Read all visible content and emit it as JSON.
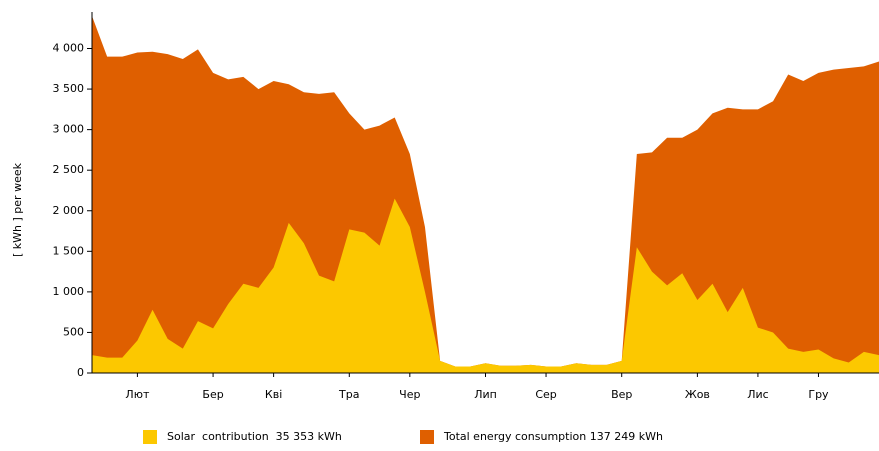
{
  "chart_data": {
    "type": "area",
    "ylabel": "[ kWh ] per week",
    "categories": [
      null,
      null,
      null,
      "Лют",
      null,
      null,
      null,
      null,
      "Бер",
      null,
      null,
      null,
      "Кві",
      null,
      null,
      null,
      null,
      "Тра",
      null,
      null,
      null,
      "Чер",
      null,
      null,
      null,
      null,
      "Лип",
      null,
      null,
      null,
      "Сер",
      null,
      null,
      null,
      null,
      "Вер",
      null,
      null,
      null,
      null,
      "Жов",
      null,
      null,
      null,
      "Лис",
      null,
      null,
      null,
      "Гру",
      null,
      null,
      null,
      null
    ],
    "series": [
      {
        "name": "Total energy consumption 137 249 kWh",
        "color": "#df5f00",
        "values": [
          4400,
          3900,
          3900,
          3950,
          3960,
          3930,
          3870,
          3990,
          3700,
          3620,
          3650,
          3500,
          3600,
          3560,
          3460,
          3440,
          3460,
          3200,
          3000,
          3050,
          3150,
          2700,
          1800,
          150,
          80,
          80,
          120,
          90,
          90,
          100,
          80,
          80,
          120,
          100,
          100,
          150,
          2700,
          2720,
          2900,
          2900,
          3000,
          3200,
          3270,
          3250,
          3250,
          3350,
          3680,
          3600,
          3700,
          3740,
          3760,
          3780,
          3840
        ]
      },
      {
        "name": "Solar  contribution  35 353 kWh",
        "color": "#fcc800",
        "values": [
          220,
          190,
          190,
          400,
          780,
          420,
          300,
          640,
          550,
          850,
          1100,
          1050,
          1300,
          1850,
          1600,
          1200,
          1130,
          1770,
          1730,
          1570,
          2150,
          1800,
          1000,
          150,
          80,
          80,
          120,
          90,
          90,
          100,
          80,
          80,
          120,
          100,
          100,
          150,
          1550,
          1250,
          1080,
          1230,
          900,
          1100,
          750,
          1050,
          560,
          500,
          300,
          260,
          290,
          180,
          130,
          260,
          220
        ]
      }
    ],
    "ylim": [
      0,
      4450
    ],
    "yticks": [
      0,
      500,
      {
        "value": 1000,
        "label": "1 000"
      },
      {
        "value": 1500,
        "label": "1 500"
      },
      {
        "value": 2000,
        "label": "2 000"
      },
      {
        "value": 2500,
        "label": "2 500"
      },
      {
        "value": 3000,
        "label": "3 000"
      },
      {
        "value": 3500,
        "label": "3 500"
      },
      {
        "value": 4000,
        "label": "4 000"
      }
    ],
    "grid": false,
    "legend": "bottom"
  }
}
